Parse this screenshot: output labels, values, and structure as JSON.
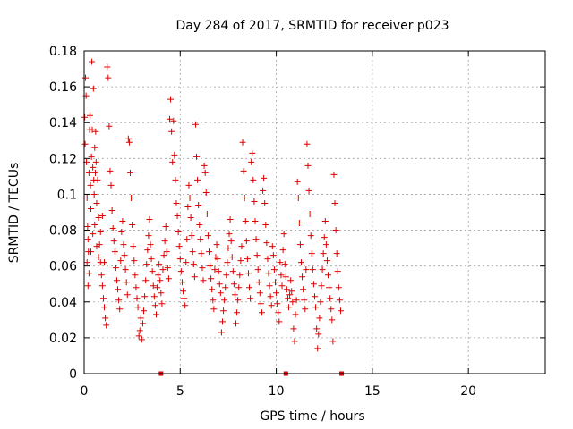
{
  "chart_data": {
    "type": "scatter",
    "title": "Day 284 of 2017, SRMTID for receiver p023",
    "xlabel": "GPS time / hours",
    "ylabel": "SRMTID / TECUs",
    "xlim": [
      0,
      24
    ],
    "ylim": [
      0,
      0.18
    ],
    "grid": true,
    "marker": "+",
    "series_color": "#dd0000",
    "x_ticks": [
      {
        "value": 0,
        "label": "0"
      },
      {
        "value": 5,
        "label": "5"
      },
      {
        "value": 10,
        "label": "10"
      },
      {
        "value": 15,
        "label": "15"
      },
      {
        "value": 20,
        "label": "20"
      }
    ],
    "y_ticks": [
      {
        "value": 0,
        "label": "0"
      },
      {
        "value": 0.02,
        "label": "0.02"
      },
      {
        "value": 0.04,
        "label": "0.04"
      },
      {
        "value": 0.06,
        "label": "0.06"
      },
      {
        "value": 0.08,
        "label": "0.08"
      },
      {
        "value": 0.1,
        "label": "0.1"
      },
      {
        "value": 0.12,
        "label": "0.12"
      },
      {
        "value": 0.14,
        "label": "0.14"
      },
      {
        "value": 0.16,
        "label": "0.16"
      },
      {
        "value": 0.18,
        "label": "0.18"
      }
    ],
    "points": [
      [
        0.03,
        0.143
      ],
      [
        0.05,
        0.128
      ],
      [
        0.07,
        0.165
      ],
      [
        0.1,
        0.155
      ],
      [
        0.12,
        0.118
      ],
      [
        0.15,
        0.098
      ],
      [
        0.18,
        0.082
      ],
      [
        0.2,
        0.075
      ],
      [
        0.22,
        0.068
      ],
      [
        0.25,
        0.112
      ],
      [
        0.28,
        0.136
      ],
      [
        0.3,
        0.144
      ],
      [
        0.33,
        0.105
      ],
      [
        0.35,
        0.092
      ],
      [
        0.38,
        0.121
      ],
      [
        0.4,
        0.174
      ],
      [
        0.42,
        0.136
      ],
      [
        0.45,
        0.115
      ],
      [
        0.48,
        0.159
      ],
      [
        0.5,
        0.108
      ],
      [
        0.52,
        0.1
      ],
      [
        0.55,
        0.126
      ],
      [
        0.58,
        0.112
      ],
      [
        0.6,
        0.135
      ],
      [
        0.62,
        0.118
      ],
      [
        0.65,
        0.095
      ],
      [
        0.7,
        0.108
      ],
      [
        0.75,
        0.087
      ],
      [
        0.8,
        0.072
      ],
      [
        0.85,
        0.062
      ],
      [
        0.9,
        0.055
      ],
      [
        0.95,
        0.049
      ],
      [
        1.0,
        0.042
      ],
      [
        1.05,
        0.037
      ],
      [
        1.1,
        0.031
      ],
      [
        1.15,
        0.027
      ],
      [
        0.15,
        0.062
      ],
      [
        0.2,
        0.049
      ],
      [
        0.25,
        0.056
      ],
      [
        0.35,
        0.068
      ],
      [
        0.45,
        0.078
      ],
      [
        0.55,
        0.083
      ],
      [
        0.65,
        0.071
      ],
      [
        0.75,
        0.065
      ],
      [
        0.85,
        0.079
      ],
      [
        0.95,
        0.088
      ],
      [
        1.05,
        0.062
      ],
      [
        1.2,
        0.171
      ],
      [
        1.25,
        0.165
      ],
      [
        1.3,
        0.138
      ],
      [
        1.35,
        0.113
      ],
      [
        1.4,
        0.105
      ],
      [
        1.45,
        0.091
      ],
      [
        1.5,
        0.081
      ],
      [
        1.55,
        0.074
      ],
      [
        1.6,
        0.068
      ],
      [
        1.65,
        0.059
      ],
      [
        1.7,
        0.052
      ],
      [
        1.75,
        0.047
      ],
      [
        1.8,
        0.041
      ],
      [
        1.85,
        0.036
      ],
      [
        1.9,
        0.063
      ],
      [
        1.95,
        0.079
      ],
      [
        2.0,
        0.085
      ],
      [
        2.05,
        0.072
      ],
      [
        2.1,
        0.066
      ],
      [
        2.15,
        0.058
      ],
      [
        2.2,
        0.051
      ],
      [
        2.25,
        0.044
      ],
      [
        2.3,
        0.131
      ],
      [
        2.35,
        0.129
      ],
      [
        2.4,
        0.112
      ],
      [
        2.45,
        0.098
      ],
      [
        2.5,
        0.083
      ],
      [
        2.55,
        0.071
      ],
      [
        2.6,
        0.063
      ],
      [
        2.65,
        0.055
      ],
      [
        2.7,
        0.048
      ],
      [
        2.75,
        0.042
      ],
      [
        2.8,
        0.037
      ],
      [
        2.85,
        0.021
      ],
      [
        2.9,
        0.024
      ],
      [
        2.95,
        0.031
      ],
      [
        3.0,
        0.019
      ],
      [
        3.05,
        0.028
      ],
      [
        3.1,
        0.035
      ],
      [
        3.15,
        0.043
      ],
      [
        3.2,
        0.052
      ],
      [
        3.25,
        0.061
      ],
      [
        3.3,
        0.069
      ],
      [
        3.35,
        0.077
      ],
      [
        3.4,
        0.086
      ],
      [
        3.45,
        0.072
      ],
      [
        3.5,
        0.064
      ],
      [
        3.55,
        0.057
      ],
      [
        3.6,
        0.049
      ],
      [
        3.65,
        0.043
      ],
      [
        3.7,
        0.038
      ],
      [
        3.75,
        0.033
      ],
      [
        3.8,
        0.048
      ],
      [
        3.85,
        0.055
      ],
      [
        3.9,
        0.061
      ],
      [
        3.95,
        0.052
      ],
      [
        4.0,
        0.045
      ],
      [
        4.05,
        0.039
      ],
      [
        4.1,
        0.058
      ],
      [
        4.15,
        0.066
      ],
      [
        4.2,
        0.074
      ],
      [
        4.25,
        0.082
      ],
      [
        4.3,
        0.068
      ],
      [
        4.35,
        0.059
      ],
      [
        4.4,
        0.053
      ],
      [
        4.45,
        0.142
      ],
      [
        4.5,
        0.153
      ],
      [
        4.55,
        0.135
      ],
      [
        4.6,
        0.118
      ],
      [
        4.65,
        0.141
      ],
      [
        4.7,
        0.122
      ],
      [
        4.75,
        0.108
      ],
      [
        4.8,
        0.095
      ],
      [
        4.85,
        0.088
      ],
      [
        4.9,
        0.079
      ],
      [
        4.95,
        0.071
      ],
      [
        5.0,
        0.064
      ],
      [
        5.05,
        0.057
      ],
      [
        5.1,
        0.051
      ],
      [
        5.15,
        0.046
      ],
      [
        5.2,
        0.042
      ],
      [
        5.25,
        0.038
      ],
      [
        5.3,
        0.062
      ],
      [
        5.35,
        0.075
      ],
      [
        5.4,
        0.093
      ],
      [
        5.45,
        0.105
      ],
      [
        5.5,
        0.098
      ],
      [
        5.55,
        0.087
      ],
      [
        5.6,
        0.077
      ],
      [
        5.65,
        0.068
      ],
      [
        5.7,
        0.061
      ],
      [
        5.75,
        0.054
      ],
      [
        5.8,
        0.139
      ],
      [
        5.85,
        0.121
      ],
      [
        5.9,
        0.108
      ],
      [
        5.95,
        0.094
      ],
      [
        6.0,
        0.083
      ],
      [
        6.05,
        0.075
      ],
      [
        6.1,
        0.067
      ],
      [
        6.15,
        0.059
      ],
      [
        6.2,
        0.052
      ],
      [
        6.25,
        0.116
      ],
      [
        6.3,
        0.112
      ],
      [
        6.35,
        0.101
      ],
      [
        6.4,
        0.089
      ],
      [
        6.45,
        0.077
      ],
      [
        6.5,
        0.068
      ],
      [
        6.55,
        0.06
      ],
      [
        6.6,
        0.053
      ],
      [
        6.65,
        0.047
      ],
      [
        6.7,
        0.041
      ],
      [
        6.75,
        0.036
      ],
      [
        6.8,
        0.058
      ],
      [
        6.85,
        0.065
      ],
      [
        6.9,
        0.072
      ],
      [
        6.95,
        0.064
      ],
      [
        7.0,
        0.057
      ],
      [
        7.05,
        0.05
      ],
      [
        7.1,
        0.045
      ],
      [
        7.15,
        0.023
      ],
      [
        7.2,
        0.029
      ],
      [
        7.25,
        0.035
      ],
      [
        7.3,
        0.041
      ],
      [
        7.35,
        0.048
      ],
      [
        7.4,
        0.055
      ],
      [
        7.45,
        0.062
      ],
      [
        7.5,
        0.07
      ],
      [
        7.55,
        0.078
      ],
      [
        7.6,
        0.086
      ],
      [
        7.65,
        0.074
      ],
      [
        7.7,
        0.065
      ],
      [
        7.75,
        0.057
      ],
      [
        7.8,
        0.05
      ],
      [
        7.85,
        0.044
      ],
      [
        7.9,
        0.028
      ],
      [
        7.95,
        0.034
      ],
      [
        8.0,
        0.041
      ],
      [
        8.05,
        0.048
      ],
      [
        8.1,
        0.055
      ],
      [
        8.15,
        0.063
      ],
      [
        8.2,
        0.071
      ],
      [
        8.25,
        0.129
      ],
      [
        8.3,
        0.113
      ],
      [
        8.35,
        0.098
      ],
      [
        8.4,
        0.085
      ],
      [
        8.45,
        0.074
      ],
      [
        8.5,
        0.064
      ],
      [
        8.55,
        0.056
      ],
      [
        8.6,
        0.048
      ],
      [
        8.65,
        0.042
      ],
      [
        8.7,
        0.118
      ],
      [
        8.75,
        0.123
      ],
      [
        8.8,
        0.108
      ],
      [
        8.85,
        0.096
      ],
      [
        8.9,
        0.085
      ],
      [
        8.95,
        0.075
      ],
      [
        9.0,
        0.066
      ],
      [
        9.05,
        0.058
      ],
      [
        9.1,
        0.051
      ],
      [
        9.15,
        0.045
      ],
      [
        9.2,
        0.039
      ],
      [
        9.25,
        0.034
      ],
      [
        9.3,
        0.102
      ],
      [
        9.35,
        0.109
      ],
      [
        9.4,
        0.095
      ],
      [
        9.45,
        0.083
      ],
      [
        9.5,
        0.073
      ],
      [
        9.55,
        0.064
      ],
      [
        9.6,
        0.056
      ],
      [
        9.65,
        0.049
      ],
      [
        9.7,
        0.043
      ],
      [
        9.75,
        0.038
      ],
      [
        9.8,
        0.071
      ],
      [
        9.85,
        0.066
      ],
      [
        9.9,
        0.058
      ],
      [
        9.95,
        0.051
      ],
      [
        10.0,
        0.045
      ],
      [
        10.05,
        0.039
      ],
      [
        10.1,
        0.034
      ],
      [
        10.15,
        0.029
      ],
      [
        10.2,
        0.062
      ],
      [
        10.25,
        0.055
      ],
      [
        10.3,
        0.049
      ],
      [
        10.35,
        0.069
      ],
      [
        10.4,
        0.078
      ],
      [
        10.45,
        0.061
      ],
      [
        10.5,
        0.054
      ],
      [
        10.55,
        0.047
      ],
      [
        10.6,
        0.042
      ],
      [
        10.65,
        0.037
      ],
      [
        10.7,
        0.044
      ],
      [
        10.75,
        0.052
      ],
      [
        10.8,
        0.046
      ],
      [
        10.85,
        0.04
      ],
      [
        10.9,
        0.025
      ],
      [
        10.95,
        0.018
      ],
      [
        11.0,
        0.033
      ],
      [
        11.05,
        0.041
      ],
      [
        11.1,
        0.107
      ],
      [
        11.15,
        0.098
      ],
      [
        11.2,
        0.084
      ],
      [
        11.25,
        0.072
      ],
      [
        11.3,
        0.062
      ],
      [
        11.35,
        0.054
      ],
      [
        11.4,
        0.047
      ],
      [
        11.45,
        0.041
      ],
      [
        11.5,
        0.036
      ],
      [
        11.55,
        0.058
      ],
      [
        11.6,
        0.128
      ],
      [
        11.65,
        0.116
      ],
      [
        11.7,
        0.102
      ],
      [
        11.75,
        0.089
      ],
      [
        11.8,
        0.077
      ],
      [
        11.85,
        0.067
      ],
      [
        11.9,
        0.058
      ],
      [
        11.95,
        0.05
      ],
      [
        12.0,
        0.043
      ],
      [
        12.05,
        0.037
      ],
      [
        12.1,
        0.025
      ],
      [
        12.15,
        0.014
      ],
      [
        12.2,
        0.022
      ],
      [
        12.25,
        0.031
      ],
      [
        12.3,
        0.04
      ],
      [
        12.35,
        0.049
      ],
      [
        12.4,
        0.058
      ],
      [
        12.45,
        0.067
      ],
      [
        12.5,
        0.076
      ],
      [
        12.55,
        0.085
      ],
      [
        12.6,
        0.072
      ],
      [
        12.65,
        0.063
      ],
      [
        12.7,
        0.055
      ],
      [
        12.75,
        0.048
      ],
      [
        12.8,
        0.042
      ],
      [
        12.85,
        0.036
      ],
      [
        12.9,
        0.03
      ],
      [
        12.95,
        0.018
      ],
      [
        13.0,
        0.111
      ],
      [
        13.05,
        0.095
      ],
      [
        13.1,
        0.08
      ],
      [
        13.15,
        0.067
      ],
      [
        13.2,
        0.057
      ],
      [
        13.25,
        0.048
      ],
      [
        13.3,
        0.041
      ],
      [
        13.35,
        0.035
      ]
    ],
    "bottom_markers": [
      4.0,
      10.5,
      13.4
    ]
  }
}
